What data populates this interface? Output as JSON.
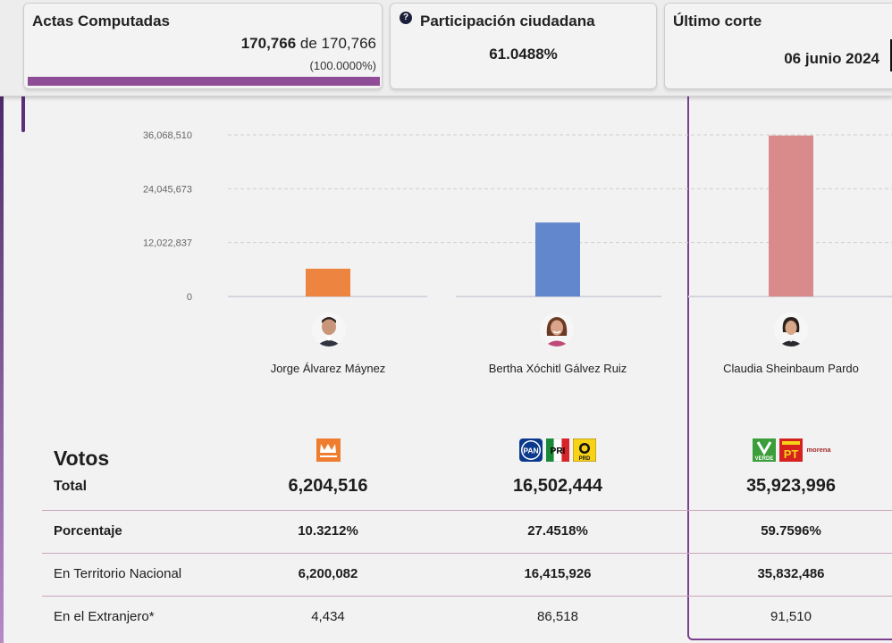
{
  "header": {
    "actas": {
      "title": "Actas Computadas",
      "computed": "170,766",
      "of_label": "de",
      "total": "170,766",
      "percent": "(100.0000%)",
      "progress_fraction": 1.0
    },
    "participacion": {
      "help_icon": "question-circle-icon",
      "title": "Participación ciudadana",
      "value": "61.0488%"
    },
    "corte": {
      "title": "Último corte",
      "value": "06 junio 2024"
    }
  },
  "chart_data": {
    "type": "bar",
    "categories": [
      "Jorge Álvarez Máynez",
      "Bertha Xóchitl Gálvez Ruiz",
      "Claudia Sheinbaum Pardo"
    ],
    "values": [
      6204516,
      16502444,
      35923996
    ],
    "colors": [
      "#ed8440",
      "#6287cc",
      "#d98a8a"
    ],
    "yticks": [
      "0",
      "12,022,837",
      "24,045,673",
      "36,068,510"
    ],
    "ytick_values": [
      0,
      12022837,
      24045673,
      36068510
    ],
    "ylim": [
      0,
      36068510
    ],
    "grid": true
  },
  "candidates": [
    {
      "name": "Jorge Álvarez Máynez",
      "photo_icon": "candidate-photo-icon",
      "party_logos": [
        "movimiento-ciudadano-logo-icon"
      ],
      "total": "6,204,516",
      "percent": "10.3212%",
      "nacional": "6,200,082",
      "extranjero": "4,434"
    },
    {
      "name": "Bertha Xóchitl Gálvez Ruiz",
      "photo_icon": "candidate-photo-icon",
      "party_logos": [
        "pan-logo-icon",
        "pri-logo-icon",
        "prd-logo-icon"
      ],
      "total": "16,502,444",
      "percent": "27.4518%",
      "nacional": "16,415,926",
      "extranjero": "86,518"
    },
    {
      "name": "Claudia Sheinbaum Pardo",
      "photo_icon": "candidate-photo-icon",
      "party_logos": [
        "verde-logo-icon",
        "pt-logo-icon",
        "morena-logo-icon"
      ],
      "total": "35,923,996",
      "percent": "59.7596%",
      "nacional": "35,832,486",
      "extranjero": "91,510"
    }
  ],
  "table": {
    "votos_label": "Votos",
    "total_label": "Total",
    "porcentaje_label": "Porcentaje",
    "nacional_label": "En Territorio Nacional",
    "extranjero_label": "En el Extranjero*"
  },
  "logo_text": {
    "pan": "PAN",
    "pri": "PRI",
    "prd": "PRD",
    "verde": "VERDE",
    "pt": "PT",
    "morena": "morena"
  },
  "colors": {
    "accent": "#8e4d96",
    "highlight_border": "#7b3f8f",
    "row_divider": "#c9a6bb"
  }
}
